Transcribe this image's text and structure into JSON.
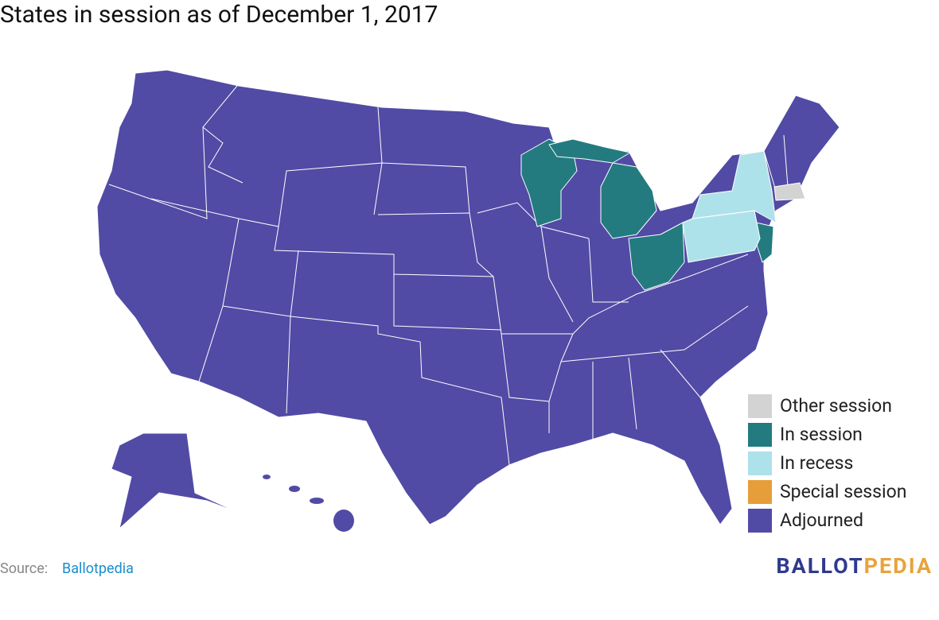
{
  "title": "States in session as of December 1, 2017",
  "legend": [
    {
      "name": "Other session",
      "color": "#d3d3d3"
    },
    {
      "name": "In session",
      "color": "#237b80"
    },
    {
      "name": "In recess",
      "color": "#aee2ea"
    },
    {
      "name": "Special session",
      "color": "#e69e3a"
    },
    {
      "name": "Adjourned",
      "color": "#514ba5"
    }
  ],
  "source": {
    "label": "Source:",
    "link": "Ballotpedia"
  },
  "logo": {
    "first": "BALLOT",
    "second": "PEDIA"
  }
}
